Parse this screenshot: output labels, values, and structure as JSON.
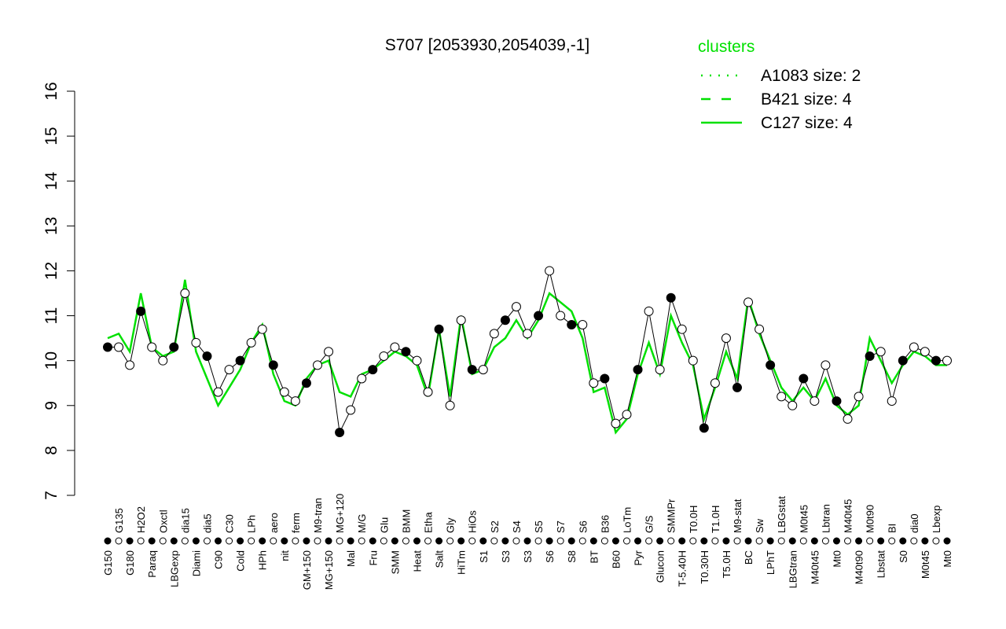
{
  "chart_data": {
    "type": "line",
    "title": "S707 [2053930,2054039,-1]",
    "xlabel": "",
    "ylabel": "",
    "ylim": [
      7,
      16
    ],
    "yticks": [
      7,
      8,
      9,
      10,
      11,
      12,
      13,
      14,
      15,
      16
    ],
    "grid": false,
    "legend": {
      "title": "clusters",
      "placement": "top-right",
      "entries": [
        {
          "label": "A1083 size: 2",
          "style": "dotted"
        },
        {
          "label": "B421 size: 4",
          "style": "dashed"
        },
        {
          "label": "C127 size: 4",
          "style": "solid"
        }
      ]
    },
    "colors": {
      "cluster": "#00e000",
      "points": "#000000"
    },
    "categories": [
      "G150",
      "G135",
      "G180",
      "H2O2",
      "Paraq",
      "Oxctl",
      "LBGexp",
      "dia15",
      "Diami",
      "dia5",
      "C90",
      "C30",
      "Cold",
      "LPh",
      "HPh",
      "aero",
      "nit",
      "ferm",
      "GM+150",
      "M9-tran",
      "MG+150",
      "MG+120",
      "Mal",
      "M/G",
      "Fru",
      "Glu",
      "SMM",
      "BMM",
      "Heat",
      "Etha",
      "Salt",
      "Gly",
      "HiTm",
      "HiOs",
      "S1",
      "S2",
      "S3",
      "S4",
      "S3",
      "S5",
      "S6",
      "S7",
      "S8",
      "S6",
      "BT",
      "B36",
      "B60",
      "LoTm",
      "Pyr",
      "G/S",
      "Glucon",
      "SMMPr",
      "T-5.40H",
      "T0.0H",
      "T0.30H",
      "T1.0H",
      "T5.0H",
      "M9-stat",
      "BC",
      "Sw",
      "LPhT",
      "LBGstat",
      "LBGtran",
      "M0t45",
      "M40t45",
      "Lbtran",
      "Mt0",
      "M40t45",
      "M40t90",
      "M0t90",
      "Lbstat",
      "BI",
      "S0",
      "dia0",
      "M0t45",
      "Lbexp",
      "Mt0"
    ],
    "values": [
      10.3,
      10.3,
      9.9,
      11.1,
      10.3,
      10.0,
      10.3,
      11.5,
      10.4,
      10.1,
      9.3,
      9.8,
      10.0,
      10.4,
      10.7,
      9.9,
      9.3,
      9.1,
      9.5,
      9.9,
      10.2,
      8.4,
      8.9,
      9.6,
      9.8,
      10.1,
      10.3,
      10.2,
      10.0,
      9.3,
      10.7,
      9.0,
      10.9,
      9.8,
      9.8,
      10.6,
      10.9,
      11.2,
      10.6,
      11.0,
      12.0,
      11.0,
      10.8,
      10.8,
      9.5,
      9.6,
      8.6,
      8.8,
      9.8,
      11.1,
      9.8,
      11.4,
      10.7,
      10.0,
      8.5,
      9.5,
      10.5,
      9.4,
      11.3,
      10.7,
      9.9,
      9.2,
      9.0,
      9.6,
      9.1,
      9.9,
      9.1,
      8.7,
      9.2,
      10.1,
      10.2,
      9.1,
      10.0,
      10.3,
      10.2,
      10.0,
      10.0
    ],
    "cluster_mean": [
      10.5,
      10.6,
      10.2,
      11.5,
      10.3,
      10.1,
      10.2,
      11.8,
      10.2,
      9.6,
      9.0,
      9.4,
      9.8,
      10.4,
      10.8,
      9.7,
      9.1,
      9.0,
      9.6,
      9.9,
      10.0,
      9.3,
      9.2,
      9.7,
      9.8,
      10.0,
      10.2,
      10.1,
      9.9,
      9.2,
      10.7,
      9.2,
      11.0,
      9.7,
      9.8,
      10.3,
      10.5,
      10.9,
      10.5,
      10.9,
      11.5,
      11.3,
      11.1,
      10.5,
      9.3,
      9.4,
      8.4,
      8.7,
      9.7,
      10.4,
      9.7,
      11.0,
      10.4,
      9.9,
      8.7,
      9.4,
      10.2,
      9.6,
      11.4,
      10.6,
      10.0,
      9.4,
      9.1,
      9.4,
      9.1,
      9.6,
      9.0,
      8.8,
      9.0,
      10.5,
      10.0,
      9.5,
      9.9,
      10.2,
      10.1,
      9.9,
      9.9
    ]
  }
}
